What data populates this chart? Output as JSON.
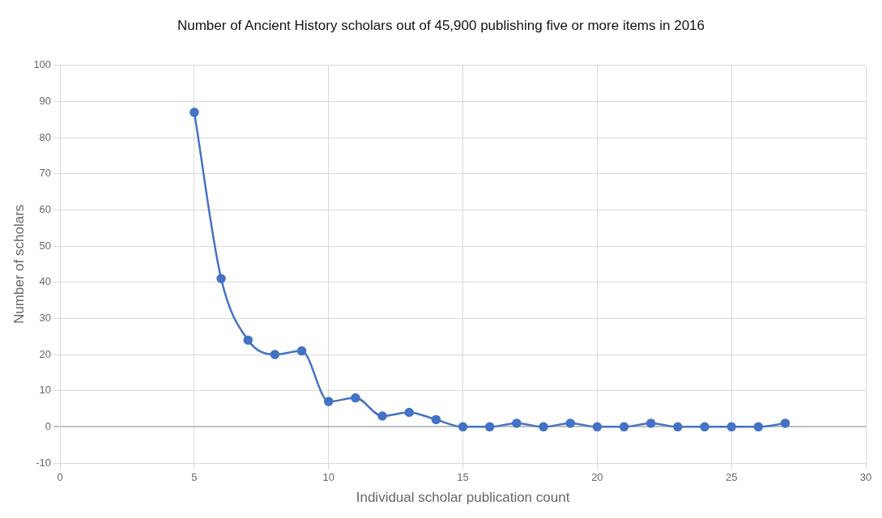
{
  "chart_data": {
    "type": "line",
    "title": "Number of Ancient History scholars out of 45,900 publishing five or more items in 2016",
    "xlabel": "Individual scholar publication count",
    "ylabel": "Number of scholars",
    "x": [
      5,
      6,
      7,
      8,
      9,
      10,
      11,
      12,
      13,
      14,
      15,
      16,
      17,
      18,
      19,
      20,
      21,
      22,
      23,
      24,
      25,
      26,
      27
    ],
    "series": [
      {
        "color": "#4472c4",
        "values": [
          87,
          41,
          24,
          20,
          21,
          7,
          8,
          3,
          4,
          2,
          0,
          0,
          1,
          0,
          1,
          0,
          0,
          1,
          0,
          0,
          0,
          0,
          1
        ]
      }
    ],
    "xlim": [
      0,
      30
    ],
    "xticks": [
      0,
      5,
      10,
      15,
      20,
      25,
      30
    ],
    "ylim": [
      -10,
      100
    ],
    "yticks": [
      -10,
      0,
      10,
      20,
      30,
      40,
      50,
      60,
      70,
      80,
      90,
      100
    ],
    "grid": true,
    "legend": false,
    "marker": "circle",
    "line_style": "solid"
  }
}
